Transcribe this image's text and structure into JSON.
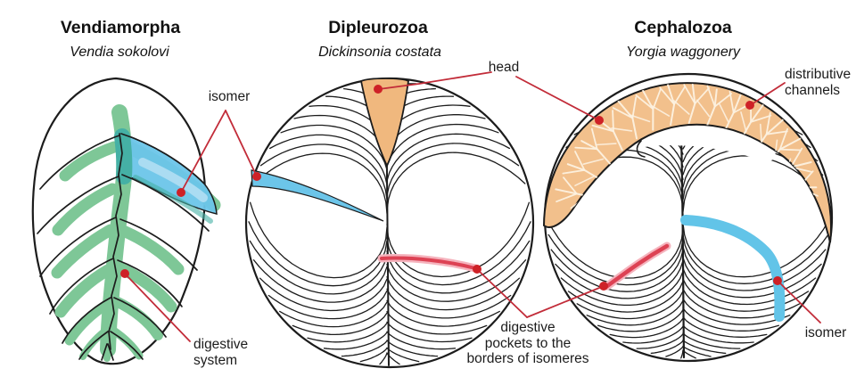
{
  "panels": [
    {
      "title": "Vendiamorpha",
      "species": "Vendia sokolovi"
    },
    {
      "title": "Dipleurozoa",
      "species": "Dickinsonia costata"
    },
    {
      "title": "Cephalozoa",
      "species": "Yorgia waggonery"
    }
  ],
  "annotations": {
    "isomer_top": "isomer",
    "head": "head",
    "distributive_channels": "distributive channels",
    "digestive_system": "digestive system",
    "digestive_pockets": [
      "digestive",
      "pockets to the",
      "borders of isomeres"
    ],
    "isomer_bottom": "isomer"
  },
  "colors": {
    "ink": "#1c1c1c",
    "annotation_line": "#c22c39",
    "dot": "#ce2127",
    "green": "#7ec797",
    "teal_overlap": "#45b0a5",
    "isomer_blue": "#6cc5e9",
    "isomer_blue_light": "#abdcf2",
    "isomer_blue_yorgia": "#62c4e8",
    "head_orange": "#f0b87e",
    "crescent_orange": "#f2c08c",
    "channel_cream": "#fcf1e0",
    "pocket_halo": "#f5b3bd",
    "pocket_core": "#dd4254"
  }
}
